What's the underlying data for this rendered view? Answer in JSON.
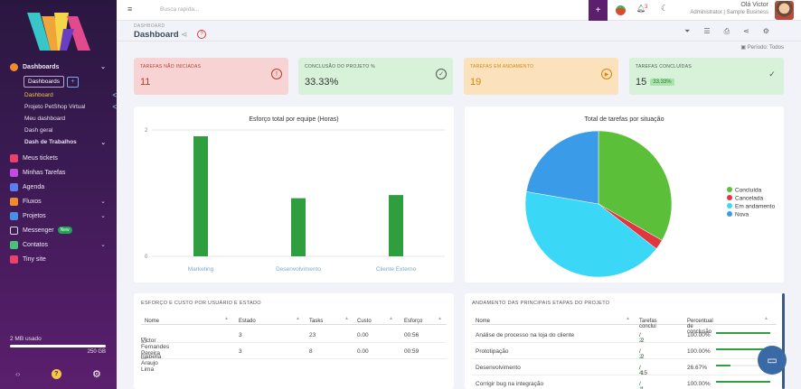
{
  "topbar": {
    "search_placeholder": "Busca rapida...",
    "notif_count": "3",
    "user_greeting": "Olá Victor",
    "user_role": "Administrator | Sample Business"
  },
  "sidebar": {
    "dashboards_label": "Dashboards",
    "dash_tab": "Dashboards",
    "dash_plus": "+",
    "sub_items": [
      "Dashboard",
      "Projeto PetShop Virtual",
      "Meu dashboard",
      "Dash geral"
    ],
    "dash_trabalhos": "Dash de Trabalhos",
    "items": [
      {
        "label": "Meus tickets",
        "color": "#e9416b"
      },
      {
        "label": "Minhas Tarefas",
        "color": "#c44be0"
      },
      {
        "label": "Agenda",
        "color": "#5b7df0"
      },
      {
        "label": "Fluxos",
        "color": "#f08c2e"
      },
      {
        "label": "Projetos",
        "color": "#4a90e2"
      },
      {
        "label": "Messenger",
        "color": "#d9d9d9"
      },
      {
        "label": "Contatos",
        "color": "#e94a4a"
      },
      {
        "label": "Tiny site",
        "color": "#e9416b"
      }
    ],
    "new_badge": "New",
    "storage_used": "2 MB usado",
    "storage_total": "250 GB"
  },
  "header": {
    "breadcrumb": "DASHBOARD",
    "title": "Dashboard",
    "periodo": "Período: Todos"
  },
  "kpis": [
    {
      "label": "TAREFAS NÃO INICIADAS",
      "value": "11"
    },
    {
      "label": "CONCLUSÃO DO PROJETO %",
      "value": "33.33%"
    },
    {
      "label": "TAREFAS EM ANDAMENTO",
      "value": "19"
    },
    {
      "label": "TAREFAS CONCLUÍDAS",
      "value": "15",
      "badge": "33.33%"
    }
  ],
  "chart_data": [
    {
      "type": "bar",
      "title": "Esforço total por equipe (Horas)",
      "categories": [
        "Marketing",
        "Desenvolvimento",
        "Cliente Externo"
      ],
      "values": [
        1.9,
        0.92,
        0.97
      ],
      "ylim": [
        0,
        2
      ],
      "yticks": [
        "2",
        "0"
      ],
      "color": "#2e9e3f"
    },
    {
      "type": "pie",
      "title": "Total de tarefas por situação",
      "labels": [
        "Concluída",
        "Cancelada",
        "Em andamento",
        "Nova"
      ],
      "values": [
        33.3,
        2.2,
        42.2,
        22.3
      ],
      "colors": [
        "#5bbf3a",
        "#e0363f",
        "#3ad8f6",
        "#3a9be8"
      ],
      "legend": "right"
    }
  ],
  "table1": {
    "title": "ESFORÇO E CUSTO POR USUÁRIO E ESTADO",
    "headers": [
      "Nome",
      "Estado",
      "Tasks",
      "Custo",
      "Esforço"
    ],
    "rows": [
      [
        "Victor Fernandes Pereira",
        "3",
        "23",
        "0.00",
        "00:56"
      ],
      [
        "Isabella Araujo Lima",
        "3",
        "8",
        "0.00",
        "00:59"
      ]
    ]
  },
  "table2": {
    "title": "ANDAMENTO DAS PRINCIPAIS ETAPAS DO PROJETO",
    "headers": [
      "Nome",
      "Tarefas conclui",
      "Percentual de conclusão"
    ],
    "rows": [
      {
        "name": "Análise de processo na loja do cliente",
        "done": "2",
        "total": "2",
        "pct": "100.00%",
        "frac": 1.0
      },
      {
        "name": "Prototipação",
        "done": "2",
        "total": "2",
        "pct": "100.00%",
        "frac": 1.0
      },
      {
        "name": "Desenvolvimento",
        "done": "4",
        "total": "15",
        "pct": "26.67%",
        "frac": 0.2667
      },
      {
        "name": "Corrigir bug na integração",
        "done": "1",
        "total": "1",
        "pct": "100.00%",
        "frac": 1.0
      }
    ]
  }
}
